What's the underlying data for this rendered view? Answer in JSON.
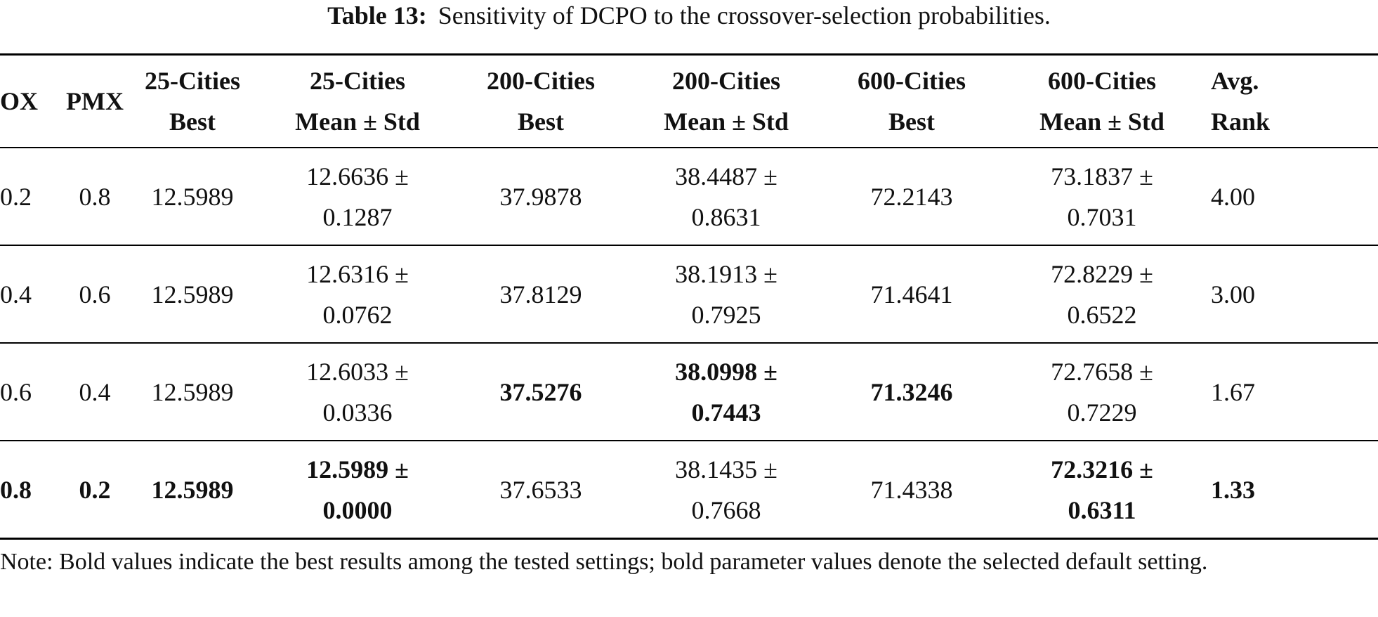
{
  "caption": {
    "label": "Table 13:",
    "text": "Sensitivity of DCPO to the crossover-selection probabilities."
  },
  "headers": [
    [
      "OX"
    ],
    [
      "PMX"
    ],
    [
      "25-Cities",
      "Best"
    ],
    [
      "25-Cities",
      "Mean ± Std"
    ],
    [
      "200-Cities",
      "Best"
    ],
    [
      "200-Cities",
      "Mean ± Std"
    ],
    [
      "600-Cities",
      "Best"
    ],
    [
      "600-Cities",
      "Mean ± Std"
    ],
    [
      "Avg.",
      "Rank"
    ]
  ],
  "rows": [
    {
      "cells": [
        {
          "lines": [
            "0.2"
          ],
          "bold": false
        },
        {
          "lines": [
            "0.8"
          ],
          "bold": false
        },
        {
          "lines": [
            "12.5989"
          ],
          "bold": false
        },
        {
          "lines": [
            "12.6636 ±",
            "0.1287"
          ],
          "bold": false
        },
        {
          "lines": [
            "37.9878"
          ],
          "bold": false
        },
        {
          "lines": [
            "38.4487 ±",
            "0.8631"
          ],
          "bold": false
        },
        {
          "lines": [
            "72.2143"
          ],
          "bold": false
        },
        {
          "lines": [
            "73.1837 ±",
            "0.7031"
          ],
          "bold": false
        },
        {
          "lines": [
            "4.00"
          ],
          "bold": false
        }
      ]
    },
    {
      "cells": [
        {
          "lines": [
            "0.4"
          ],
          "bold": false
        },
        {
          "lines": [
            "0.6"
          ],
          "bold": false
        },
        {
          "lines": [
            "12.5989"
          ],
          "bold": false
        },
        {
          "lines": [
            "12.6316 ±",
            "0.0762"
          ],
          "bold": false
        },
        {
          "lines": [
            "37.8129"
          ],
          "bold": false
        },
        {
          "lines": [
            "38.1913 ±",
            "0.7925"
          ],
          "bold": false
        },
        {
          "lines": [
            "71.4641"
          ],
          "bold": false
        },
        {
          "lines": [
            "72.8229 ±",
            "0.6522"
          ],
          "bold": false
        },
        {
          "lines": [
            "3.00"
          ],
          "bold": false
        }
      ]
    },
    {
      "cells": [
        {
          "lines": [
            "0.6"
          ],
          "bold": false
        },
        {
          "lines": [
            "0.4"
          ],
          "bold": false
        },
        {
          "lines": [
            "12.5989"
          ],
          "bold": false
        },
        {
          "lines": [
            "12.6033 ±",
            "0.0336"
          ],
          "bold": false
        },
        {
          "lines": [
            "37.5276"
          ],
          "bold": true
        },
        {
          "lines": [
            "38.0998 ±",
            "0.7443"
          ],
          "bold": true
        },
        {
          "lines": [
            "71.3246"
          ],
          "bold": true
        },
        {
          "lines": [
            "72.7658 ±",
            "0.7229"
          ],
          "bold": false
        },
        {
          "lines": [
            "1.67"
          ],
          "bold": false
        }
      ]
    },
    {
      "cells": [
        {
          "lines": [
            "0.8"
          ],
          "bold": true
        },
        {
          "lines": [
            "0.2"
          ],
          "bold": true
        },
        {
          "lines": [
            "12.5989"
          ],
          "bold": true
        },
        {
          "lines": [
            "12.5989 ±",
            "0.0000"
          ],
          "bold": true
        },
        {
          "lines": [
            "37.6533"
          ],
          "bold": false
        },
        {
          "lines": [
            "38.1435 ±",
            "0.7668"
          ],
          "bold": false
        },
        {
          "lines": [
            "71.4338"
          ],
          "bold": false
        },
        {
          "lines": [
            "72.3216 ±",
            "0.6311"
          ],
          "bold": true
        },
        {
          "lines": [
            "1.33"
          ],
          "bold": true
        }
      ]
    }
  ],
  "note": "Note: Bold values indicate the best results among the tested settings; bold parameter values denote the selected default setting."
}
